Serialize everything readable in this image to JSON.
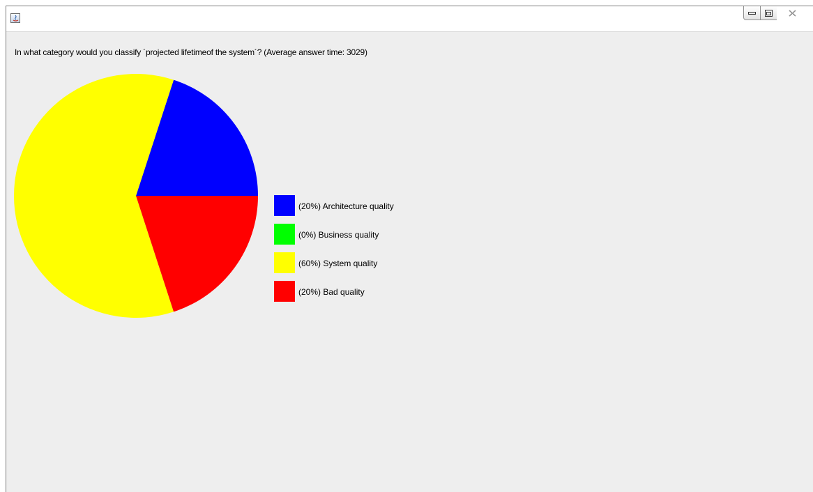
{
  "window": {
    "title": "",
    "controls": {
      "minimize_icon": "minimize-icon",
      "maximize_icon": "maximize-icon",
      "close_icon": "close-icon"
    }
  },
  "question": {
    "text": "In what category would you classify ´projected lifetimeof the system´? (Average answer time: 3029)"
  },
  "colors": {
    "architecture": "#0000ff",
    "business": "#00ff00",
    "system": "#ffff00",
    "bad": "#ff0000",
    "background": "#eeeeee"
  },
  "legend": [
    {
      "label": "(20%) Architecture quality",
      "color": "#0000ff"
    },
    {
      "label": "(0%) Business quality",
      "color": "#00ff00"
    },
    {
      "label": "(60%) System quality",
      "color": "#ffff00"
    },
    {
      "label": "(20%) Bad quality",
      "color": "#ff0000"
    }
  ],
  "chart_data": {
    "type": "pie",
    "categories": [
      "Architecture quality",
      "Business quality",
      "System quality",
      "Bad quality"
    ],
    "values": [
      20,
      0,
      60,
      20
    ],
    "colors": [
      "#0000ff",
      "#00ff00",
      "#ffff00",
      "#ff0000"
    ],
    "title": "",
    "legend_position": "right"
  }
}
